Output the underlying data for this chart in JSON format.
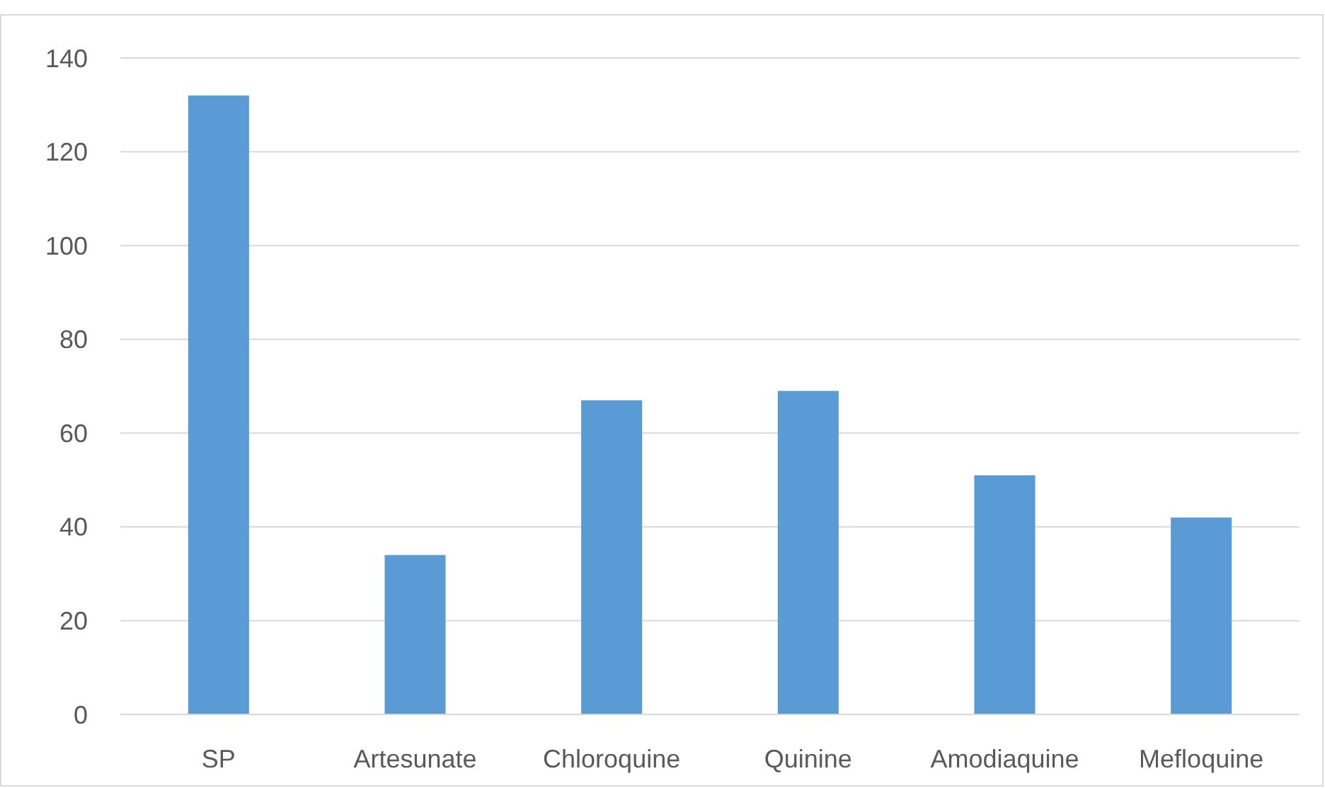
{
  "chart_data": {
    "type": "bar",
    "categories": [
      "SP",
      "Artesunate",
      "Chloroquine",
      "Quinine",
      "Amodiaquine",
      "Mefloquine"
    ],
    "values": [
      132,
      34,
      67,
      69,
      51,
      42
    ],
    "color": "#5b9bd5",
    "ylim": [
      0,
      140
    ],
    "yticks": [
      0,
      20,
      40,
      60,
      80,
      100,
      120,
      140
    ],
    "grid": "y"
  }
}
